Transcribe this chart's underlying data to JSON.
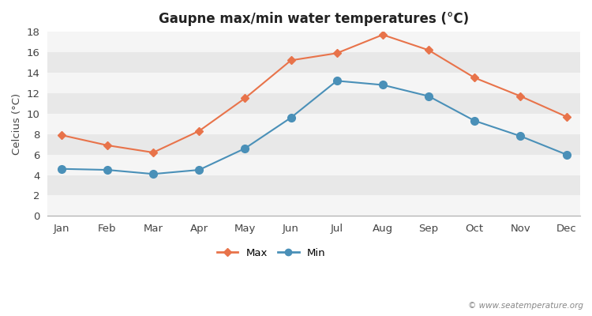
{
  "months": [
    "Jan",
    "Feb",
    "Mar",
    "Apr",
    "May",
    "Jun",
    "Jul",
    "Aug",
    "Sep",
    "Oct",
    "Nov",
    "Dec"
  ],
  "max_temps": [
    7.9,
    6.9,
    6.2,
    8.3,
    11.5,
    15.2,
    15.9,
    17.7,
    16.2,
    13.5,
    11.7,
    9.7
  ],
  "min_temps": [
    4.6,
    4.5,
    4.1,
    4.5,
    6.6,
    9.6,
    13.2,
    12.8,
    11.7,
    9.3,
    7.8,
    6.0
  ],
  "max_color": "#e8734a",
  "min_color": "#4a90b8",
  "title": "Gaupne max/min water temperatures (°C)",
  "ylabel": "Celcius (°C)",
  "ylim": [
    0,
    18
  ],
  "yticks": [
    0,
    2,
    4,
    6,
    8,
    10,
    12,
    14,
    16,
    18
  ],
  "fig_bg_color": "#ffffff",
  "plot_bg_color": "#f0f0f0",
  "band_color_light": "#f5f5f5",
  "band_color_dark": "#e8e8e8",
  "watermark": "© www.seatemperature.org",
  "legend_max": "Max",
  "legend_min": "Min"
}
